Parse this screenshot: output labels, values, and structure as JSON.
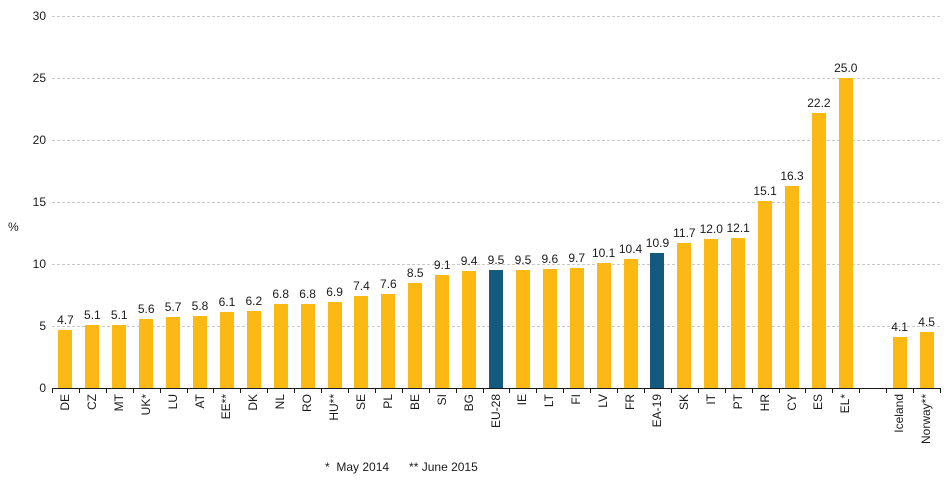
{
  "chart_data": {
    "type": "bar",
    "title": "",
    "xlabel": "",
    "ylabel": "%",
    "ylim": [
      0,
      30
    ],
    "yticks": [
      0,
      5,
      10,
      15,
      20,
      25,
      30
    ],
    "grid": "horizontal-dashed",
    "legend": "none",
    "categories": [
      "DE",
      "CZ",
      "MT",
      "UK*",
      "LU",
      "AT",
      "EE**",
      "DK",
      "NL",
      "RO",
      "HU**",
      "SE",
      "PL",
      "BE",
      "SI",
      "BG",
      "EU-28",
      "IE",
      "LT",
      "FI",
      "LV",
      "FR",
      "EA-19",
      "SK",
      "IT",
      "PT",
      "HR",
      "CY",
      "ES",
      "EL*",
      "Iceland",
      "Norway**"
    ],
    "values": [
      4.7,
      5.1,
      5.1,
      5.6,
      5.7,
      5.8,
      6.1,
      6.2,
      6.8,
      6.8,
      6.9,
      7.4,
      7.6,
      8.5,
      9.1,
      9.4,
      9.5,
      9.5,
      9.6,
      9.7,
      10.1,
      10.4,
      10.9,
      11.7,
      12.0,
      12.1,
      15.1,
      16.3,
      22.2,
      25.0,
      4.1,
      4.5
    ],
    "highlighted_categories": [
      "EU-28",
      "EA-19"
    ],
    "gap_after_category": "EL*",
    "bar_color": "#FCB813",
    "highlight_color": "#14597E",
    "value_label_decimals": 1,
    "footnotes": [
      "*  May 2014",
      "** June 2015"
    ]
  }
}
